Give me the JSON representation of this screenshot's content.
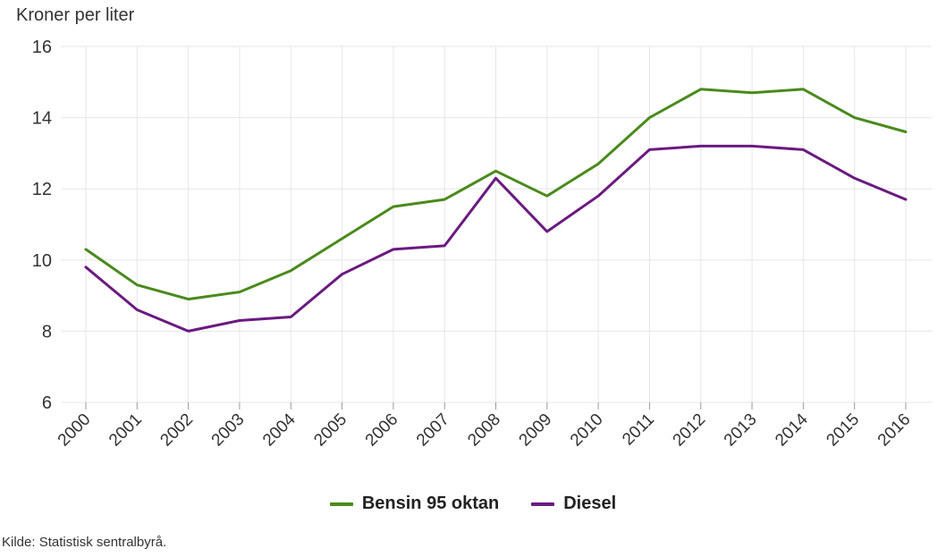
{
  "chart_data": {
    "type": "line",
    "ylabel": "Kroner per liter",
    "xlabel": "",
    "title": "",
    "ylim": [
      6,
      16
    ],
    "yticks": [
      6,
      8,
      10,
      12,
      14,
      16
    ],
    "categories": [
      "2000",
      "2001",
      "2002",
      "2003",
      "2004",
      "2005",
      "2006",
      "2007",
      "2008",
      "2009",
      "2010",
      "2011",
      "2012",
      "2013",
      "2014",
      "2015",
      "2016"
    ],
    "series": [
      {
        "name": "Bensin 95 oktan",
        "color": "#4a8a1c",
        "values": [
          10.3,
          9.3,
          8.9,
          9.1,
          9.7,
          10.6,
          11.5,
          11.7,
          12.5,
          11.8,
          12.7,
          14.0,
          14.8,
          14.7,
          14.8,
          14.0,
          13.6
        ]
      },
      {
        "name": "Diesel",
        "color": "#6a1a80",
        "values": [
          9.8,
          8.6,
          8.0,
          8.3,
          8.4,
          9.6,
          10.3,
          10.4,
          12.3,
          10.8,
          11.8,
          13.1,
          13.2,
          13.2,
          13.1,
          12.3,
          11.7
        ]
      }
    ],
    "grid": true,
    "legend_position": "bottom-center"
  },
  "source_text": "Kilde: Statistisk sentralbyrå."
}
